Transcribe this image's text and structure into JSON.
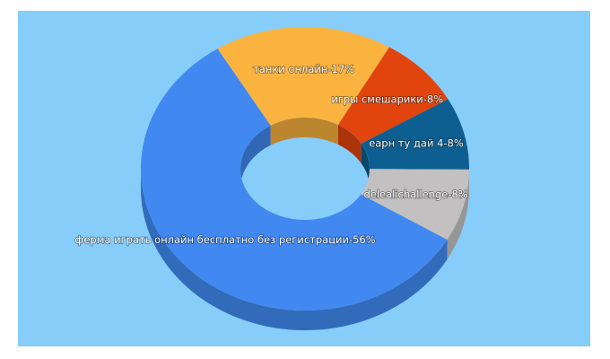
{
  "chart_data": {
    "type": "pie",
    "donut": true,
    "categories": [
      "ферма играть онлайн бесплатно без регистрации-56%",
      "танки онлайн-17%",
      "игры смешарики-8%",
      "еарн ту дай 4-8%",
      "delealichallenge-8%"
    ],
    "values": [
      56,
      17,
      8,
      8,
      8
    ],
    "colors": [
      "#4189f0",
      "#fbb33f",
      "#e2440d",
      "#0c5f90",
      "#c2c0c0"
    ],
    "background": "#87cdfa"
  }
}
